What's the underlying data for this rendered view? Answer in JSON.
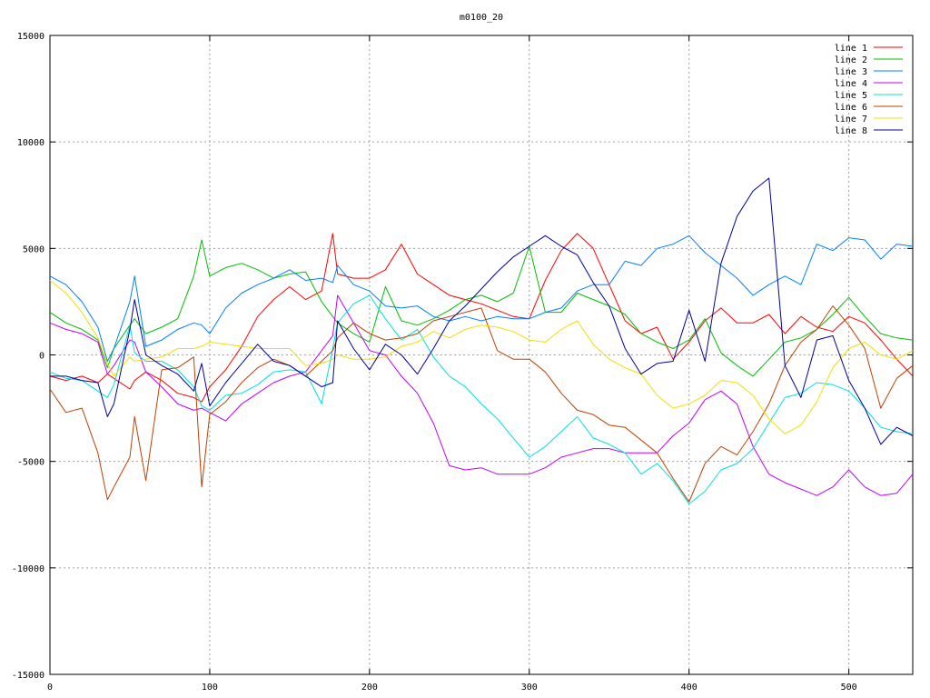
{
  "chart_data": {
    "type": "line",
    "title": "m0100_20",
    "xlabel": "",
    "ylabel": "",
    "xlim": [
      0,
      540
    ],
    "ylim": [
      -15000,
      15000
    ],
    "xticks": [
      0,
      100,
      200,
      300,
      400,
      500
    ],
    "yticks": [
      -15000,
      -10000,
      -5000,
      0,
      5000,
      10000,
      15000
    ],
    "grid": true,
    "legend_position": "top-right",
    "x": [
      0,
      10,
      20,
      30,
      36,
      40,
      50,
      53,
      60,
      70,
      80,
      90,
      95,
      100,
      110,
      120,
      130,
      140,
      150,
      160,
      170,
      177,
      180,
      190,
      200,
      210,
      220,
      230,
      240,
      250,
      260,
      270,
      280,
      290,
      300,
      310,
      320,
      330,
      340,
      350,
      360,
      370,
      380,
      390,
      400,
      410,
      420,
      430,
      440,
      450,
      460,
      470,
      480,
      490,
      500,
      510,
      520,
      530,
      540
    ],
    "series": [
      {
        "name": "line 1",
        "color": "#ff0000",
        "values": [
          -1000,
          -1200,
          -1000,
          -1300,
          -900,
          -1100,
          -1600,
          -1200,
          -800,
          -1200,
          -1800,
          -2000,
          -2200,
          -1500,
          -700,
          400,
          1800,
          2600,
          3200,
          2600,
          3000,
          5700,
          3800,
          3600,
          3600,
          4000,
          5200,
          3800,
          3300,
          2800,
          2600,
          2400,
          2100,
          1800,
          1700,
          3500,
          4900,
          5700,
          5000,
          3300,
          1600,
          1000,
          1300,
          -200,
          600,
          1600,
          2200,
          1500,
          1500,
          1900,
          1000,
          1800,
          1300,
          1100,
          1800,
          1500,
          700,
          -200,
          -1000
        ]
      },
      {
        "name": "line 2",
        "color": "#00c000",
        "values": [
          2000,
          1500,
          1200,
          700,
          -600,
          300,
          1400,
          1700,
          1000,
          1300,
          1700,
          3700,
          5400,
          3700,
          4100,
          4300,
          4000,
          3600,
          3800,
          3900,
          2500,
          1800,
          1500,
          1000,
          600,
          3200,
          1600,
          1400,
          1700,
          2100,
          2600,
          2800,
          2500,
          2900,
          5100,
          2000,
          2000,
          2900,
          2600,
          2300,
          1900,
          1000,
          600,
          300,
          700,
          1700,
          100,
          -500,
          -1000,
          -200,
          600,
          800,
          1200,
          1900,
          2700,
          1800,
          1000,
          800,
          700
        ]
      },
      {
        "name": "line 3",
        "color": "#0080ff",
        "values": [
          3700,
          3300,
          2500,
          1300,
          -300,
          300,
          2500,
          3700,
          400,
          700,
          1200,
          1500,
          1400,
          1000,
          2200,
          2900,
          3300,
          3600,
          4000,
          3500,
          3600,
          3400,
          4200,
          3300,
          3000,
          2300,
          2200,
          2300,
          1800,
          1600,
          1800,
          1600,
          1800,
          1700,
          1700,
          2000,
          2200,
          3000,
          3300,
          3300,
          4400,
          4200,
          5000,
          5200,
          5600,
          4800,
          4200,
          3600,
          2800,
          3300,
          3700,
          3300,
          5200,
          4900,
          5500,
          5400,
          4500,
          5200,
          5100
        ]
      },
      {
        "name": "line 4",
        "color": "#c000ff",
        "values": [
          1500,
          1200,
          1000,
          600,
          -900,
          -500,
          700,
          600,
          -800,
          -1500,
          -2300,
          -2600,
          -2500,
          -2700,
          -3100,
          -2300,
          -1800,
          -1300,
          -1000,
          -800,
          200,
          900,
          2800,
          1500,
          200,
          0,
          -1000,
          -1800,
          -3200,
          -5200,
          -5400,
          -5300,
          -5600,
          -5600,
          -5600,
          -5300,
          -4800,
          -4600,
          -4400,
          -4400,
          -4600,
          -4600,
          -4600,
          -3800,
          -3200,
          -2100,
          -1700,
          -2300,
          -4300,
          -5600,
          -6000,
          -6300,
          -6600,
          -6200,
          -5400,
          -6200,
          -6600,
          -6500,
          -5600
        ]
      },
      {
        "name": "line 5",
        "color": "#00e0e0",
        "values": [
          -800,
          -1100,
          -1200,
          -1700,
          -2000,
          -1400,
          1400,
          100,
          -300,
          -300,
          -700,
          -1500,
          -2400,
          -2600,
          -1900,
          -1800,
          -1400,
          -800,
          -700,
          -800,
          -2300,
          300,
          1500,
          2400,
          2800,
          1700,
          700,
          1200,
          -100,
          -1000,
          -1500,
          -2300,
          -3000,
          -3900,
          -4800,
          -4300,
          -3600,
          -2900,
          -3900,
          -4200,
          -4600,
          -5600,
          -5100,
          -5900,
          -7000,
          -6400,
          -5400,
          -5100,
          -4400,
          -3200,
          -2000,
          -1800,
          -1300,
          -1400,
          -1700,
          -2500,
          -3400,
          -3600,
          -3700
        ]
      },
      {
        "name": "line 6",
        "color": "#c04000",
        "values": [
          -1600,
          -2700,
          -2500,
          -4600,
          -6800,
          -6200,
          -4800,
          -2900,
          -5900,
          -700,
          -600,
          -100,
          -6200,
          -2800,
          -2200,
          -1300,
          -600,
          -200,
          -500,
          -1000,
          -300,
          200,
          800,
          1500,
          1000,
          700,
          800,
          1000,
          1600,
          1800,
          2000,
          2200,
          200,
          -200,
          -200,
          -800,
          -1800,
          -2600,
          -2800,
          -3300,
          -3400,
          -4000,
          -4600,
          -5800,
          -6900,
          -5100,
          -4300,
          -4700,
          -3600,
          -2300,
          -500,
          600,
          1200,
          2300,
          1400,
          300,
          -2500,
          -1100,
          -500
        ]
      },
      {
        "name": "line 7",
        "color": "#f0e000",
        "values": [
          3500,
          2900,
          2000,
          800,
          -400,
          -1000,
          -100,
          -300,
          -200,
          -100,
          300,
          300,
          400,
          600,
          500,
          400,
          300,
          300,
          300,
          -500,
          -400,
          -200,
          0,
          -200,
          -200,
          -100,
          400,
          600,
          1100,
          800,
          1200,
          1400,
          1300,
          1100,
          700,
          600,
          1200,
          1600,
          500,
          -200,
          -600,
          -900,
          -1900,
          -2500,
          -2300,
          -1900,
          -1200,
          -1300,
          -1900,
          -3000,
          -3700,
          -3300,
          -2200,
          -600,
          300,
          600,
          0,
          -200,
          200
        ]
      },
      {
        "name": "line 8",
        "color": "#0000a0",
        "values": [
          -1000,
          -1000,
          -1200,
          -1300,
          -2900,
          -2300,
          1200,
          2600,
          0,
          -500,
          -900,
          -1700,
          -400,
          -2400,
          -1300,
          -400,
          500,
          -300,
          -500,
          -1000,
          -1500,
          -1300,
          1600,
          300,
          -700,
          500,
          0,
          -900,
          300,
          1600,
          2300,
          3100,
          3900,
          4600,
          5100,
          5600,
          5100,
          4700,
          3400,
          2300,
          300,
          -900,
          -400,
          -300,
          2100,
          -300,
          4300,
          6500,
          7700,
          8300,
          -500,
          -2000,
          700,
          900,
          -1200,
          -2500,
          -4200,
          -3400,
          -3800
        ]
      }
    ]
  }
}
